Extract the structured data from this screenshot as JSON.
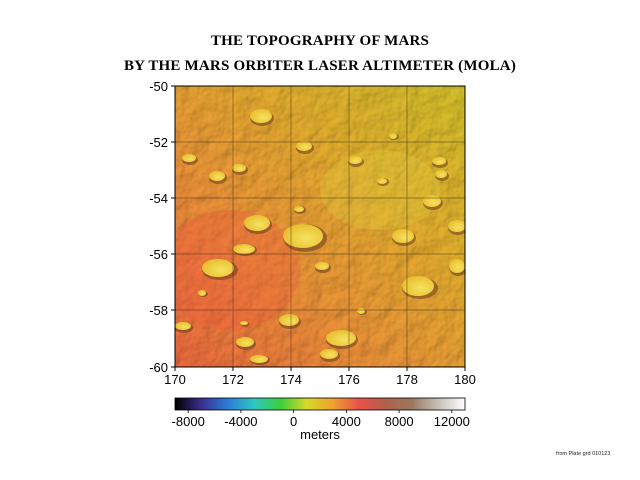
{
  "title_line1": "THE TOPOGRAPHY OF MARS",
  "title_line2": "BY THE MARS ORBITER LASER ALTIMETER (MOLA)",
  "map": {
    "x_ticks": [
      "170",
      "172",
      "174",
      "176",
      "178",
      "180"
    ],
    "y_ticks": [
      "-50",
      "-52",
      "-54",
      "-56",
      "-58",
      "-60"
    ],
    "lon_range": [
      170,
      180
    ],
    "lat_range": [
      -60,
      -50
    ]
  },
  "colorbar": {
    "ticks": [
      "-8000",
      "-4000",
      "0",
      "4000",
      "8000",
      "12000"
    ],
    "tick_values": [
      -8000,
      -4000,
      0,
      4000,
      8000,
      12000
    ],
    "range": [
      -9000,
      13000
    ],
    "unit": "meters",
    "colors": [
      "#000000",
      "#3b2f8f",
      "#2b7cd6",
      "#2fc6c0",
      "#3ccf3c",
      "#d8d82a",
      "#f0a030",
      "#e8504a",
      "#b0604a",
      "#9a7a60",
      "#c8c0b8",
      "#ffffff"
    ]
  },
  "credit": "from Plate grd 010123",
  "colors": {
    "terrain_low": "#f07a45",
    "terrain_high": "#d8c22a"
  }
}
